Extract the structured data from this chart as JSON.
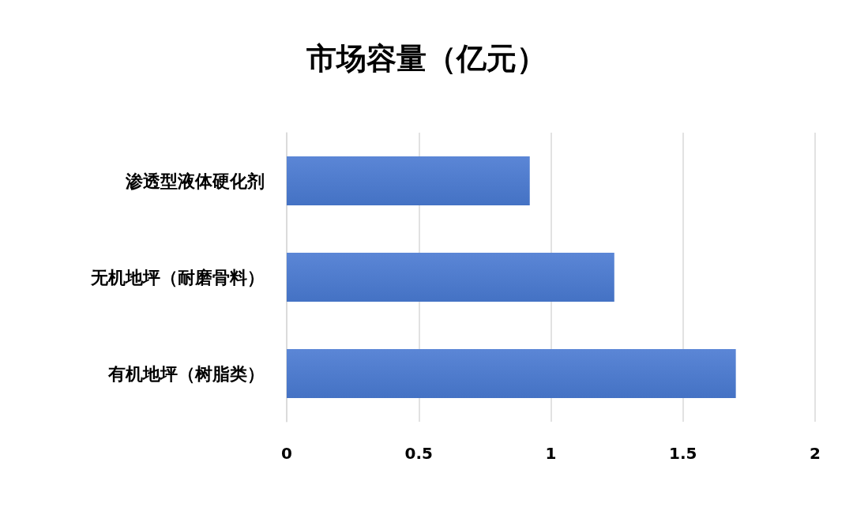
{
  "chart_data": {
    "type": "bar",
    "orientation": "horizontal",
    "title": "市场容量（亿元）",
    "categories": [
      "渗透型液体硬化剂",
      "无机地坪（耐磨骨料）",
      "有机地坪（树脂类）"
    ],
    "values": [
      0.92,
      1.24,
      1.7
    ],
    "color": "#4472c4",
    "xlim": [
      0,
      2
    ],
    "xticks": [
      0,
      0.5,
      1,
      1.5,
      2
    ],
    "grid": "x"
  }
}
